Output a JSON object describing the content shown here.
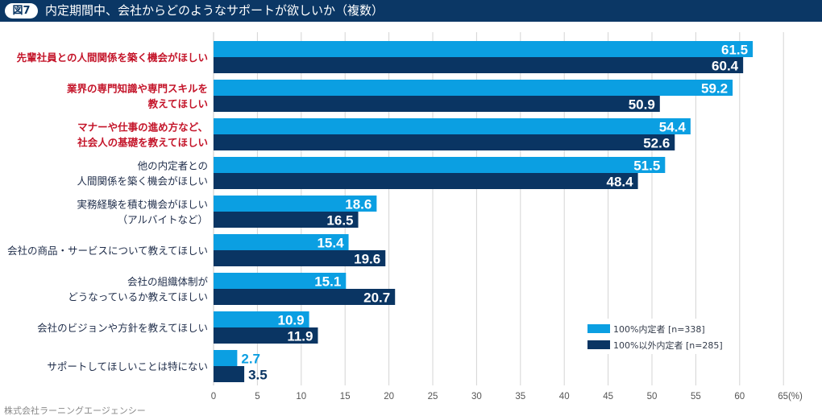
{
  "header": {
    "badge": "図7",
    "title": "内定期間中、会社からどのようなサポートが欲しいか（複数）"
  },
  "credit": "株式会社ラーニングエージェンシー",
  "colors": {
    "series1": "#0b9fe2",
    "series2": "#0a3563",
    "highlight_label": "#c4152a",
    "title_bar": "#0b3765",
    "grid": "#d4d4d4"
  },
  "chart_data": {
    "type": "bar",
    "orientation": "horizontal",
    "title": "内定期間中、会社からどのようなサポートが欲しいか（複数）",
    "xlabel": "",
    "ylabel": "",
    "xlim": [
      0,
      65
    ],
    "xunit": "(%)",
    "grid": true,
    "legend_position": "bottom-right",
    "x_ticks": [
      "0",
      "5",
      "10",
      "15",
      "20",
      "25",
      "30",
      "35",
      "40",
      "45",
      "50",
      "55",
      "60",
      "65(%)"
    ],
    "categories": [
      {
        "lines": [
          "先輩社員との人間関係を築く機会がほしい"
        ],
        "highlight": true
      },
      {
        "lines": [
          "業界の専門知識や専門スキルを",
          "教えてほしい"
        ],
        "highlight": true
      },
      {
        "lines": [
          "マナーや仕事の進め方など、",
          "社会人の基礎を教えてほしい"
        ],
        "highlight": true
      },
      {
        "lines": [
          "他の内定者との",
          "人間関係を築く機会がほしい"
        ],
        "highlight": false
      },
      {
        "lines": [
          "実務経験を積む機会がほしい",
          "（アルバイトなど）"
        ],
        "highlight": false
      },
      {
        "lines": [
          "会社の商品・サービスについて教えてほしい"
        ],
        "highlight": false
      },
      {
        "lines": [
          "会社の組織体制が",
          "どうなっているか教えてほしい"
        ],
        "highlight": false
      },
      {
        "lines": [
          "会社のビジョンや方針を教えてほしい"
        ],
        "highlight": false
      },
      {
        "lines": [
          "サポートしてほしいことは特にない"
        ],
        "highlight": false
      }
    ],
    "series": [
      {
        "name": "100%内定者 [n=338]",
        "values": [
          61.5,
          59.2,
          54.4,
          51.5,
          18.6,
          15.4,
          15.1,
          10.9,
          2.7
        ]
      },
      {
        "name": "100%以外内定者 [n=285]",
        "values": [
          60.4,
          50.9,
          52.6,
          48.4,
          16.5,
          19.6,
          20.7,
          11.9,
          3.5
        ]
      }
    ]
  }
}
